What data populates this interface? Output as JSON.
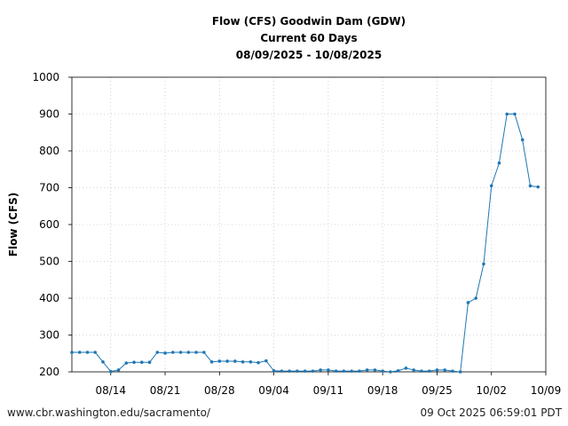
{
  "chart_data": {
    "type": "line",
    "title": [
      "Flow (CFS) Goodwin Dam (GDW)",
      "Current 60 Days",
      "08/09/2025 - 10/08/2025"
    ],
    "xlabel": "",
    "ylabel": "Flow (CFS)",
    "ylim": [
      200,
      1000
    ],
    "yticks": [
      200,
      300,
      400,
      500,
      600,
      700,
      800,
      900,
      1000
    ],
    "xlim": [
      "2025-08-09",
      "2025-10-09"
    ],
    "xticks": [
      {
        "date": "2025-08-14",
        "label": "08/14"
      },
      {
        "date": "2025-08-21",
        "label": "08/21"
      },
      {
        "date": "2025-08-28",
        "label": "08/28"
      },
      {
        "date": "2025-09-04",
        "label": "09/04"
      },
      {
        "date": "2025-09-11",
        "label": "09/11"
      },
      {
        "date": "2025-09-18",
        "label": "09/18"
      },
      {
        "date": "2025-09-25",
        "label": "09/25"
      },
      {
        "date": "2025-10-02",
        "label": "10/02"
      },
      {
        "date": "2025-10-09",
        "label": "10/09"
      }
    ],
    "grid": true,
    "line_color": "#1f77b4",
    "series": [
      {
        "x": [
          "2025-08-09",
          "2025-08-10",
          "2025-08-11",
          "2025-08-12",
          "2025-08-13",
          "2025-08-14",
          "2025-08-15",
          "2025-08-16",
          "2025-08-17",
          "2025-08-18",
          "2025-08-19",
          "2025-08-20",
          "2025-08-21",
          "2025-08-22",
          "2025-08-23",
          "2025-08-24",
          "2025-08-25",
          "2025-08-26",
          "2025-08-27",
          "2025-08-28",
          "2025-08-29",
          "2025-08-30",
          "2025-08-31",
          "2025-09-01",
          "2025-09-02",
          "2025-09-03",
          "2025-09-04",
          "2025-09-05",
          "2025-09-06",
          "2025-09-07",
          "2025-09-08",
          "2025-09-09",
          "2025-09-10",
          "2025-09-11",
          "2025-09-12",
          "2025-09-13",
          "2025-09-14",
          "2025-09-15",
          "2025-09-16",
          "2025-09-17",
          "2025-09-18",
          "2025-09-19",
          "2025-09-20",
          "2025-09-21",
          "2025-09-22",
          "2025-09-23",
          "2025-09-24",
          "2025-09-25",
          "2025-09-26",
          "2025-09-27",
          "2025-09-28",
          "2025-09-29",
          "2025-09-30",
          "2025-10-01",
          "2025-10-02",
          "2025-10-03",
          "2025-10-04",
          "2025-10-05",
          "2025-10-06",
          "2025-10-07",
          "2025-10-08"
        ],
        "values": [
          253,
          253,
          253,
          253,
          227,
          201,
          205,
          224,
          226,
          226,
          226,
          253,
          251,
          253,
          253,
          253,
          253,
          253,
          227,
          229,
          229,
          229,
          227,
          227,
          225,
          230,
          203,
          202,
          202,
          202,
          202,
          202,
          205,
          205,
          202,
          202,
          202,
          202,
          205,
          205,
          202,
          200,
          203,
          210,
          205,
          202,
          202,
          205,
          205,
          202,
          200,
          388,
          400,
          493,
          705,
          767,
          900,
          900,
          830,
          705,
          702
        ]
      }
    ]
  },
  "footer": {
    "left": "www.cbr.washington.edu/sacramento/",
    "right": "09 Oct 2025 06:59:01 PDT"
  }
}
